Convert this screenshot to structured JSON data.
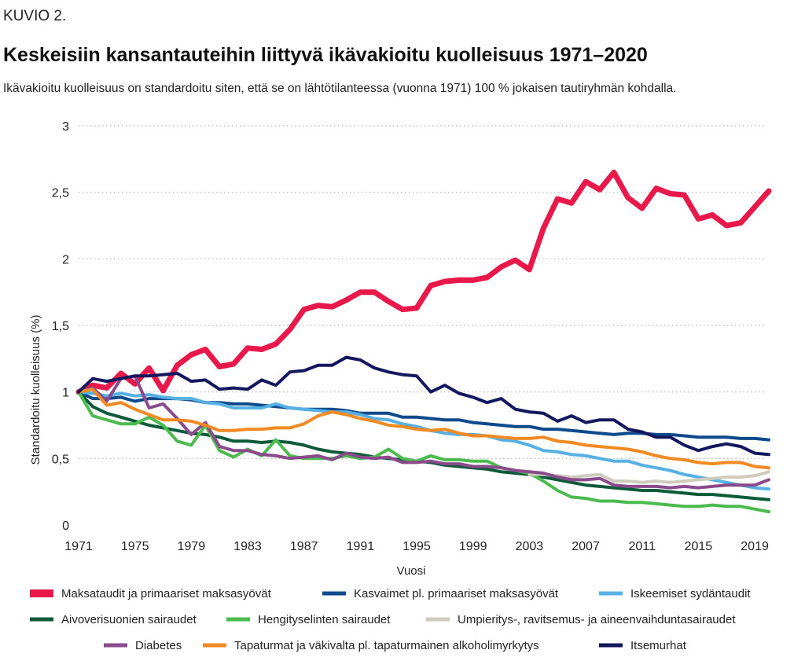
{
  "figure_label": "KUVIO 2.",
  "chart_data": {
    "type": "line",
    "title": "Keskeisiin kansantauteihin liittyvä ikävakioitu kuolleisuus 1971–2020",
    "subtitle": "Ikävakioitu kuolleisuus on standardoitu siten, että se on lähtötilanteessa (vuonna 1971) 100 % jokaisen tautiryhmän kohdalla.",
    "xlabel": "Vuosi",
    "ylabel": "Standardoitu kuolleisuus (%)",
    "xlim": [
      1971,
      2020
    ],
    "ylim": [
      0,
      3
    ],
    "x_ticks": [
      "1971",
      "1975",
      "1979",
      "1983",
      "1987",
      "1991",
      "1995",
      "1999",
      "2003",
      "2007",
      "2011",
      "2015",
      "2019"
    ],
    "y_ticks": [
      "0",
      "0,5",
      "1",
      "1,5",
      "2",
      "2,5",
      "3"
    ],
    "y_tick_values": [
      0,
      0.5,
      1,
      1.5,
      2,
      2.5,
      3
    ],
    "grid": "horizontal-dotted",
    "legend_position": "bottom",
    "x": [
      1971,
      1972,
      1973,
      1974,
      1975,
      1976,
      1977,
      1978,
      1979,
      1980,
      1981,
      1982,
      1983,
      1984,
      1985,
      1986,
      1987,
      1988,
      1989,
      1990,
      1991,
      1992,
      1993,
      1994,
      1995,
      1996,
      1997,
      1998,
      1999,
      2000,
      2001,
      2002,
      2003,
      2004,
      2005,
      2006,
      2007,
      2008,
      2009,
      2010,
      2011,
      2012,
      2013,
      2014,
      2015,
      2016,
      2017,
      2018,
      2019,
      2020
    ],
    "series": [
      {
        "name": "Maksataudit ja primaariset maksasyövät",
        "color": "#e8194a",
        "width": 7,
        "values": [
          1.0,
          1.05,
          1.03,
          1.14,
          1.06,
          1.18,
          1.01,
          1.2,
          1.28,
          1.32,
          1.19,
          1.21,
          1.33,
          1.32,
          1.36,
          1.47,
          1.62,
          1.65,
          1.64,
          1.69,
          1.75,
          1.75,
          1.68,
          1.62,
          1.63,
          1.8,
          1.83,
          1.84,
          1.84,
          1.86,
          1.94,
          1.99,
          1.92,
          2.23,
          2.45,
          2.42,
          2.58,
          2.52,
          2.65,
          2.46,
          2.38,
          2.53,
          2.49,
          2.48,
          2.3,
          2.33,
          2.25,
          2.27,
          2.39,
          2.51
        ]
      },
      {
        "name": "Kasvaimet pl. primaariset maksasyövät",
        "color": "#0d4a8c",
        "width": 4,
        "values": [
          1.0,
          0.95,
          0.95,
          0.96,
          0.93,
          0.95,
          0.95,
          0.95,
          0.94,
          0.92,
          0.92,
          0.91,
          0.91,
          0.9,
          0.89,
          0.88,
          0.87,
          0.87,
          0.87,
          0.86,
          0.84,
          0.84,
          0.84,
          0.81,
          0.81,
          0.8,
          0.79,
          0.79,
          0.77,
          0.76,
          0.75,
          0.74,
          0.74,
          0.72,
          0.72,
          0.71,
          0.7,
          0.69,
          0.68,
          0.69,
          0.69,
          0.68,
          0.68,
          0.67,
          0.66,
          0.66,
          0.66,
          0.65,
          0.65,
          0.64
        ]
      },
      {
        "name": "Iskeemiset sydäntaudit",
        "color": "#57b0e4",
        "width": 4,
        "values": [
          1.0,
          0.99,
          0.97,
          0.99,
          0.97,
          0.98,
          0.96,
          0.95,
          0.95,
          0.92,
          0.91,
          0.88,
          0.88,
          0.88,
          0.91,
          0.88,
          0.87,
          0.86,
          0.85,
          0.85,
          0.83,
          0.8,
          0.79,
          0.76,
          0.74,
          0.71,
          0.69,
          0.68,
          0.68,
          0.67,
          0.64,
          0.63,
          0.6,
          0.56,
          0.55,
          0.53,
          0.52,
          0.5,
          0.48,
          0.48,
          0.45,
          0.43,
          0.41,
          0.38,
          0.36,
          0.34,
          0.32,
          0.3,
          0.28,
          0.27
        ]
      },
      {
        "name": "Aivoverisuonien sairaudet",
        "color": "#0b5a3a",
        "width": 4,
        "values": [
          1.0,
          0.89,
          0.84,
          0.81,
          0.78,
          0.75,
          0.73,
          0.71,
          0.69,
          0.68,
          0.66,
          0.63,
          0.63,
          0.62,
          0.63,
          0.62,
          0.6,
          0.57,
          0.55,
          0.54,
          0.53,
          0.51,
          0.5,
          0.49,
          0.48,
          0.47,
          0.45,
          0.44,
          0.43,
          0.42,
          0.4,
          0.39,
          0.38,
          0.36,
          0.34,
          0.32,
          0.3,
          0.29,
          0.28,
          0.27,
          0.26,
          0.26,
          0.25,
          0.24,
          0.23,
          0.23,
          0.22,
          0.21,
          0.2,
          0.19
        ]
      },
      {
        "name": "Hengityselinten sairaudet",
        "color": "#4cbb4f",
        "width": 4,
        "values": [
          1.0,
          0.82,
          0.79,
          0.76,
          0.76,
          0.81,
          0.75,
          0.63,
          0.6,
          0.75,
          0.56,
          0.51,
          0.57,
          0.52,
          0.64,
          0.52,
          0.5,
          0.5,
          0.5,
          0.52,
          0.5,
          0.51,
          0.57,
          0.5,
          0.48,
          0.52,
          0.49,
          0.49,
          0.48,
          0.48,
          0.43,
          0.41,
          0.39,
          0.33,
          0.26,
          0.21,
          0.2,
          0.18,
          0.18,
          0.17,
          0.17,
          0.16,
          0.15,
          0.14,
          0.14,
          0.15,
          0.14,
          0.14,
          0.12,
          0.1
        ]
      },
      {
        "name": "Umpieritys-, ravitsemus- ja aineenvaihduntasairaudet",
        "color": "#cfcbbd",
        "width": 4,
        "values": [
          null,
          null,
          null,
          null,
          null,
          null,
          null,
          null,
          null,
          null,
          null,
          null,
          null,
          null,
          null,
          null,
          null,
          null,
          null,
          null,
          null,
          null,
          null,
          null,
          null,
          null,
          null,
          null,
          null,
          null,
          null,
          null,
          0.38,
          0.38,
          0.37,
          0.36,
          0.37,
          0.38,
          0.33,
          0.33,
          0.32,
          0.33,
          0.32,
          0.33,
          0.34,
          0.35,
          0.36,
          0.36,
          0.37,
          0.4
        ]
      },
      {
        "name": "Diabetes",
        "color": "#8b4a8c",
        "width": 4,
        "values": [
          1.0,
          1.03,
          0.93,
          1.1,
          1.12,
          0.88,
          0.91,
          0.8,
          0.68,
          0.77,
          0.59,
          0.56,
          0.56,
          0.53,
          0.52,
          0.5,
          0.51,
          0.52,
          0.49,
          0.54,
          0.51,
          0.5,
          0.51,
          0.47,
          0.47,
          0.48,
          0.46,
          0.46,
          0.44,
          0.44,
          0.43,
          0.41,
          0.4,
          0.39,
          0.36,
          0.34,
          0.34,
          0.35,
          0.3,
          0.29,
          0.29,
          0.29,
          0.28,
          0.29,
          0.28,
          0.29,
          0.3,
          0.3,
          0.3,
          0.34
        ]
      },
      {
        "name": "Tapaturmat ja väkivalta pl. tapaturmainen alkoholimyrkytys",
        "color": "#f18a22",
        "width": 4,
        "values": [
          1.0,
          1.02,
          0.9,
          0.92,
          0.87,
          0.83,
          0.79,
          0.79,
          0.78,
          0.75,
          0.71,
          0.71,
          0.72,
          0.72,
          0.73,
          0.73,
          0.76,
          0.82,
          0.85,
          0.83,
          0.8,
          0.78,
          0.75,
          0.74,
          0.72,
          0.71,
          0.72,
          0.69,
          0.67,
          0.67,
          0.66,
          0.65,
          0.65,
          0.66,
          0.63,
          0.62,
          0.6,
          0.59,
          0.58,
          0.57,
          0.55,
          0.52,
          0.5,
          0.49,
          0.47,
          0.46,
          0.47,
          0.47,
          0.44,
          0.43
        ]
      },
      {
        "name": "Itsemurhat",
        "color": "#13185e",
        "width": 4,
        "values": [
          1.0,
          1.1,
          1.08,
          1.1,
          1.12,
          1.12,
          1.13,
          1.14,
          1.08,
          1.09,
          1.02,
          1.03,
          1.02,
          1.09,
          1.05,
          1.15,
          1.16,
          1.2,
          1.2,
          1.26,
          1.24,
          1.18,
          1.15,
          1.13,
          1.12,
          1.0,
          1.05,
          0.99,
          0.96,
          0.92,
          0.95,
          0.87,
          0.85,
          0.84,
          0.78,
          0.82,
          0.77,
          0.79,
          0.79,
          0.72,
          0.7,
          0.66,
          0.66,
          0.6,
          0.56,
          0.59,
          0.61,
          0.59,
          0.54,
          0.53
        ]
      }
    ]
  }
}
